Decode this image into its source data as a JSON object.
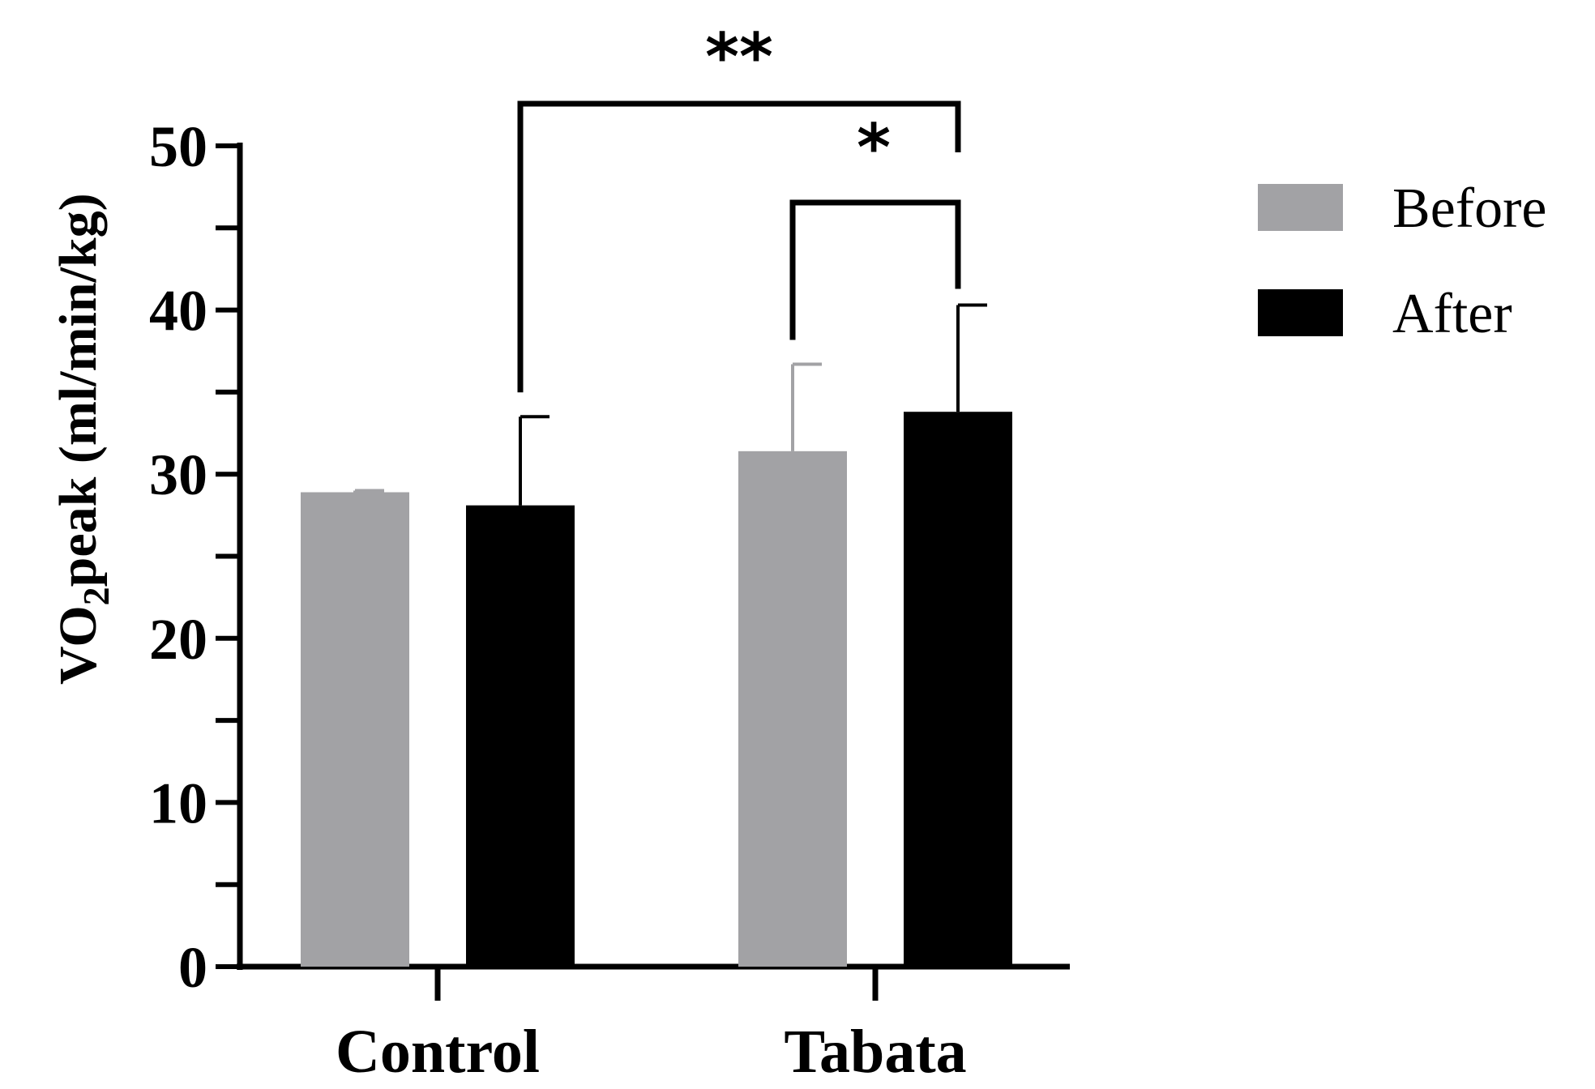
{
  "chart_data": {
    "type": "bar",
    "categories": [
      "Control",
      "Tabata"
    ],
    "series": [
      {
        "name": "Before",
        "color": "#a2a2a5",
        "values": [
          28.9,
          31.4
        ],
        "errors": [
          0.1,
          5.3
        ]
      },
      {
        "name": "After",
        "color": "#000000",
        "values": [
          28.1,
          33.8
        ],
        "errors": [
          5.4,
          6.5
        ]
      }
    ],
    "ylabel": {
      "main": "VO",
      "sub": "2",
      "rest": "peak (ml/min/kg)"
    },
    "xlabel": "",
    "ylim": [
      0,
      50
    ],
    "y_ticks": [
      "0",
      "10",
      "20",
      "30",
      "40",
      "50"
    ],
    "y_minor_step": 5,
    "grid": false,
    "legend_position": "top-right",
    "significance": [
      {
        "label": "**",
        "from": "Control / After",
        "to": "Tabata / After"
      },
      {
        "label": "*",
        "from": "Tabata / Before",
        "to": "Tabata / After"
      }
    ]
  }
}
